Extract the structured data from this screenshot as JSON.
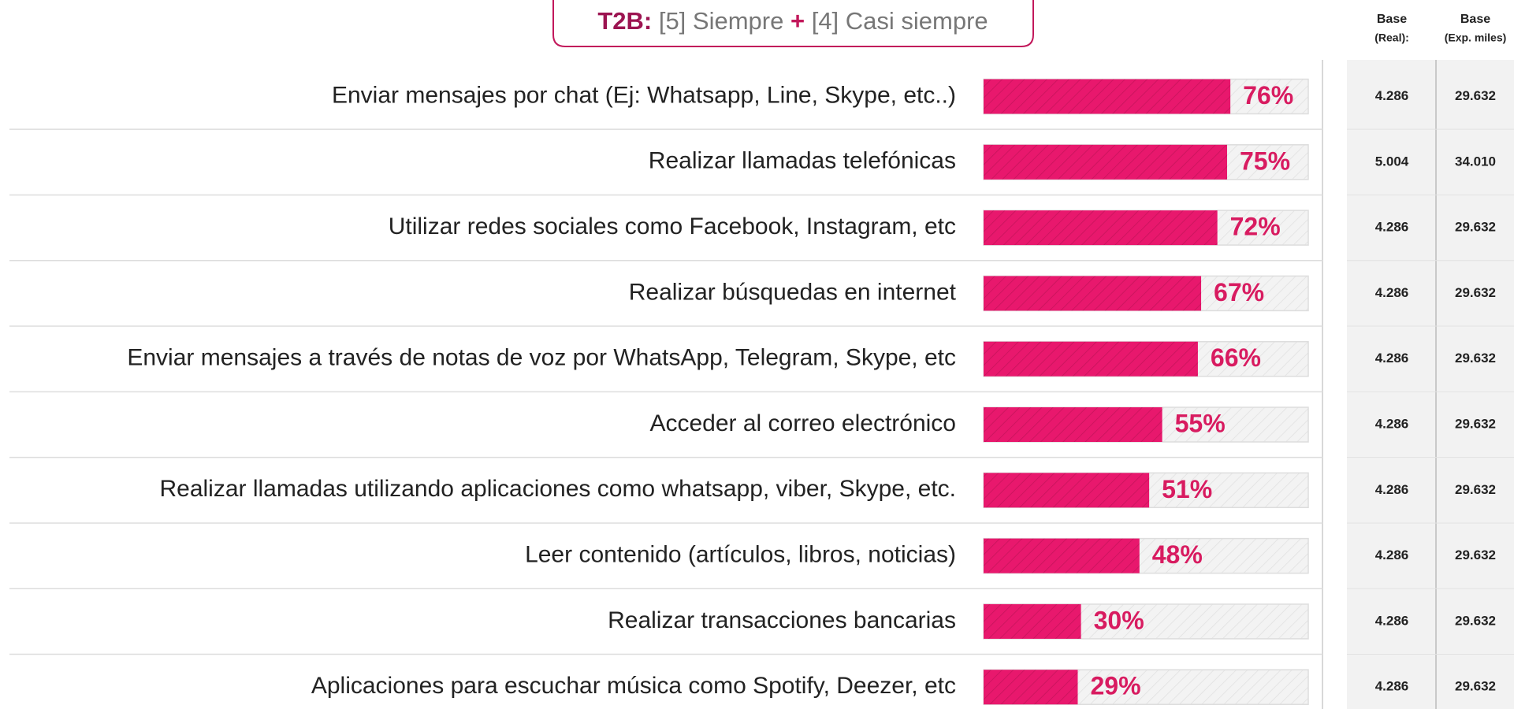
{
  "chart_data": {
    "type": "bar",
    "title_parts": [
      "T2B:",
      "[5] Siempre",
      "+",
      "[4] Casi siempre"
    ],
    "categories": [
      "Enviar mensajes por chat (Ej: Whatsapp, Line, Skype, etc..)",
      "Realizar llamadas telefónicas",
      "Utilizar redes sociales como Facebook, Instagram, etc",
      "Realizar búsquedas en internet",
      "Enviar mensajes a través de notas de voz por WhatsApp, Telegram, Skype, etc",
      "Acceder al correo electrónico",
      "Realizar llamadas utilizando aplicaciones como whatsapp, viber, Skype, etc.",
      "Leer contenido (artículos, libros, noticias)",
      "Realizar transacciones bancarias",
      "Aplicaciones para escuchar música como Spotify, Deezer, etc"
    ],
    "values": [
      76,
      75,
      72,
      67,
      66,
      55,
      51,
      48,
      30,
      29
    ],
    "value_labels": [
      "76%",
      "75%",
      "72%",
      "67%",
      "66%",
      "55%",
      "51%",
      "48%",
      "30%",
      "29%"
    ],
    "color": "#e8186d",
    "xlim": [
      0,
      100
    ],
    "base_columns": [
      {
        "name": "Base",
        "sub": "(Real):",
        "values": [
          "4.286",
          "5.004",
          "4.286",
          "4.286",
          "4.286",
          "4.286",
          "4.286",
          "4.286",
          "4.286",
          "4.286"
        ]
      },
      {
        "name": "Base",
        "sub": "(Exp. miles)",
        "values": [
          "29.632",
          "34.010",
          "29.632",
          "29.632",
          "29.632",
          "29.632",
          "29.632",
          "29.632",
          "29.632",
          "29.632"
        ]
      }
    ]
  }
}
